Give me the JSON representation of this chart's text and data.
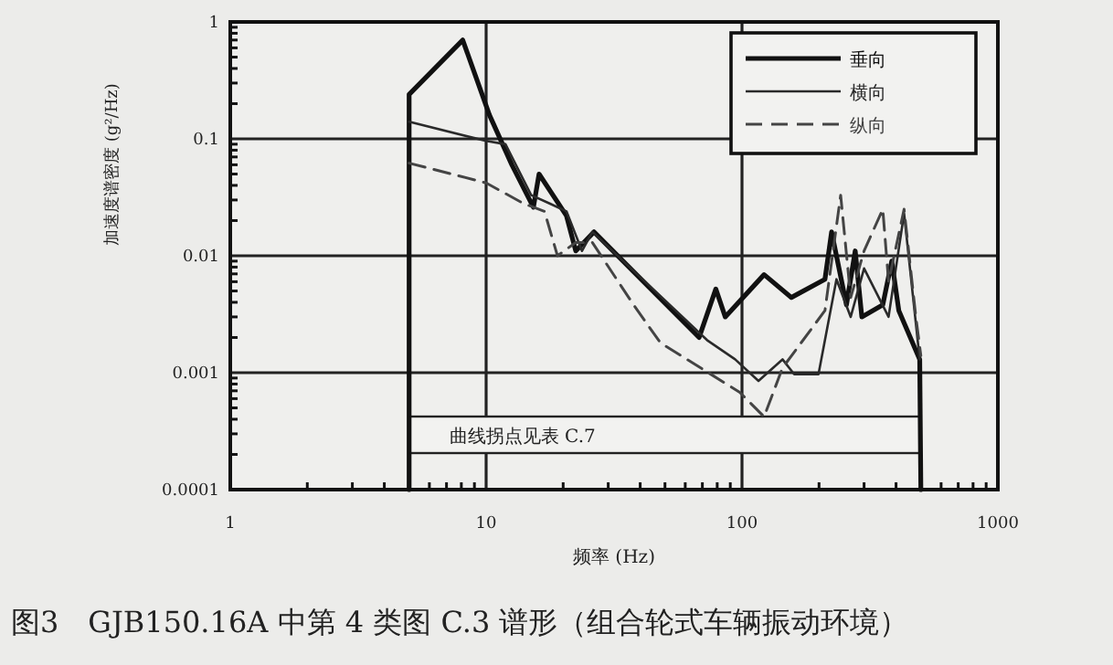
{
  "chart_data": {
    "type": "line",
    "xlabel": "频率 (Hz)",
    "ylabel": "加速度谱密度 (g²/Hz)",
    "title": "图3　GJB150.16A 中第 4 类图 C.3 谱形（组合轮式车辆振动环境）",
    "annotations": [
      "曲线拐点见表 C.7"
    ],
    "log": "xy",
    "xlim": [
      1,
      1000
    ],
    "ylim": [
      0.0001,
      1
    ],
    "xticks": [
      1,
      10,
      100,
      1000
    ],
    "yticks": [
      0.0001,
      0.001,
      0.01,
      0.1,
      1
    ],
    "grid": true,
    "legend": "top right",
    "marker": "none",
    "series": [
      {
        "name": "垂向",
        "color": "#111111",
        "line_style": "solid",
        "x": [
          5,
          5,
          8.1,
          10.3,
          12.6,
          15.3,
          16.1,
          20.6,
          22.4,
          26.4,
          68,
          79,
          86,
          122,
          156,
          211,
          224,
          256,
          277,
          294,
          355,
          385,
          410,
          495,
          500
        ],
        "values": [
          0.0001,
          0.24,
          0.7,
          0.16,
          0.06,
          0.026,
          0.05,
          0.022,
          0.011,
          0.016,
          0.002,
          0.0052,
          0.003,
          0.0069,
          0.0044,
          0.0063,
          0.016,
          0.0038,
          0.011,
          0.003,
          0.0038,
          0.009,
          0.0034,
          0.0013,
          0.0001
        ]
      },
      {
        "name": "横向",
        "color": "#2a2a2a",
        "line_style": "solid",
        "x": [
          5,
          10,
          11.9,
          15,
          17.7,
          20.6,
          23.7,
          26,
          73,
          94,
          116,
          144,
          160,
          199,
          234,
          266,
          300,
          374,
          430,
          495
        ],
        "values": [
          0.14,
          0.096,
          0.09,
          0.033,
          0.028,
          0.024,
          0.011,
          0.016,
          0.0019,
          0.0013,
          0.00085,
          0.0013,
          0.00097,
          0.00097,
          0.0063,
          0.003,
          0.0078,
          0.003,
          0.023,
          0.0013
        ]
      },
      {
        "name": "纵向",
        "color": "#444444",
        "line_style": "dashed",
        "x": [
          5,
          10,
          14,
          16.9,
          19,
          22.4,
          26,
          37.7,
          48,
          98,
          122,
          144,
          211,
          243,
          266,
          300,
          355,
          374,
          430,
          478,
          500
        ],
        "values": [
          0.062,
          0.042,
          0.028,
          0.024,
          0.01,
          0.013,
          0.013,
          0.0038,
          0.0018,
          0.00068,
          0.00042,
          0.0011,
          0.0034,
          0.033,
          0.0044,
          0.011,
          0.025,
          0.006,
          0.025,
          0.003,
          0.0014
        ]
      }
    ]
  }
}
